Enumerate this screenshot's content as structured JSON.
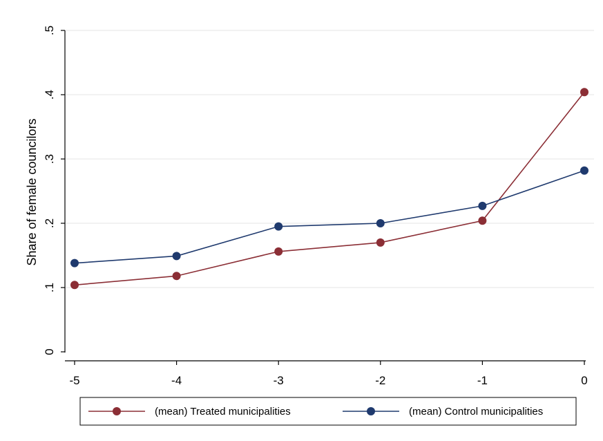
{
  "chart_data": {
    "type": "line",
    "title": "",
    "xlabel": "",
    "ylabel": "Share of female councilors",
    "x": [
      -5,
      -4,
      -3,
      -2,
      -1,
      0
    ],
    "x_tick_labels": [
      "-5",
      "-4",
      "-3",
      "-2",
      "-1",
      "0"
    ],
    "y_ticks": [
      0,
      0.1,
      0.2,
      0.3,
      0.4,
      0.5
    ],
    "y_tick_labels": [
      "0",
      ".1",
      ".2",
      ".3",
      ".4",
      ".5"
    ],
    "xlim": [
      -5,
      0
    ],
    "ylim": [
      0,
      0.5
    ],
    "grid": true,
    "legend_position": "bottom",
    "series": [
      {
        "name": "(mean) Treated municipalities",
        "color": "#8B2E35",
        "values": [
          0.104,
          0.118,
          0.156,
          0.17,
          0.204,
          0.404
        ]
      },
      {
        "name": "(mean) Control municipalities",
        "color": "#1F3A6E",
        "values": [
          0.138,
          0.149,
          0.195,
          0.2,
          0.227,
          0.282
        ]
      }
    ]
  }
}
